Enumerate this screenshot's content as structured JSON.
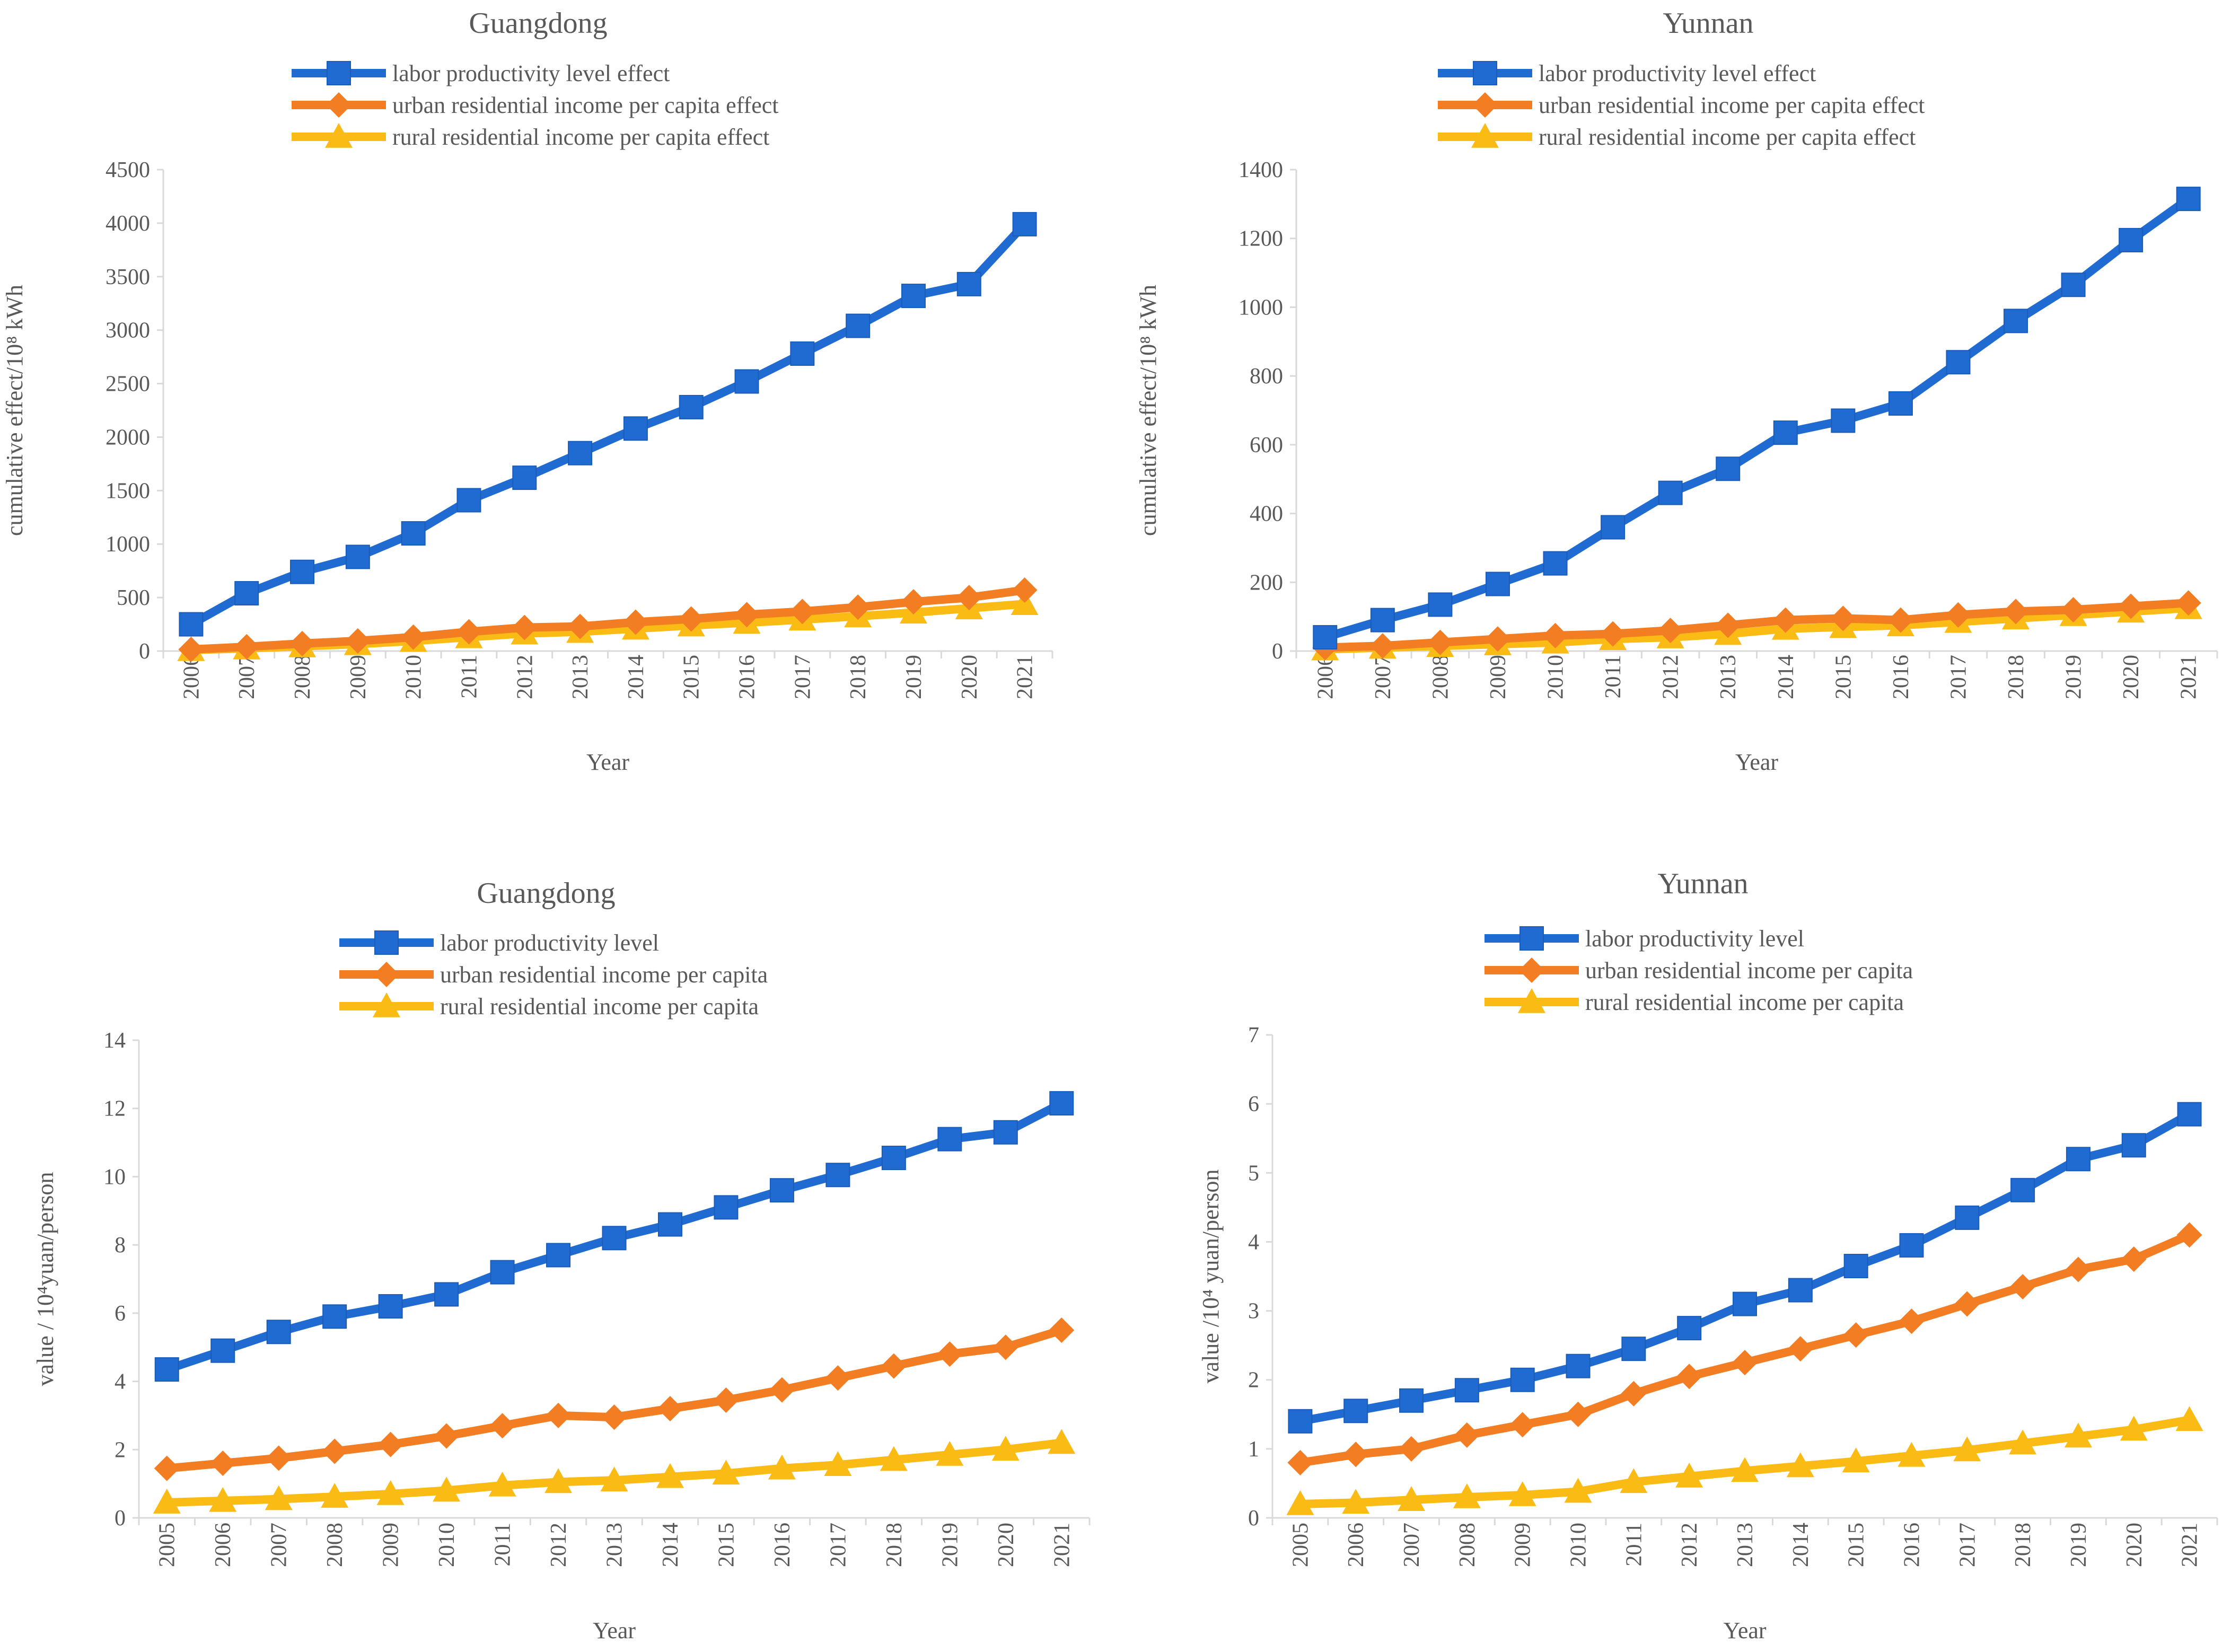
{
  "chart_data": [
    {
      "type": "line",
      "title": "Guangdong",
      "xlabel": "Year",
      "ylabel": "cumulative effect/10⁸ kWh",
      "ylim": [
        0,
        4500
      ],
      "yticks": [
        0,
        500,
        1000,
        1500,
        2000,
        2500,
        3000,
        3500,
        4000,
        4500
      ],
      "grid": false,
      "legend": "top-center",
      "categories": [
        "2006",
        "2007",
        "2008",
        "2009",
        "2010",
        "2011",
        "2012",
        "2013",
        "2014",
        "2015",
        "2016",
        "2017",
        "2018",
        "2019",
        "2020",
        "2021"
      ],
      "series": [
        {
          "name": "labor productivity level effect",
          "color": "#1f6bd1",
          "marker": "square",
          "values": [
            250,
            540,
            740,
            880,
            1100,
            1410,
            1620,
            1850,
            2080,
            2280,
            2520,
            2780,
            3040,
            3320,
            3430,
            3990
          ]
        },
        {
          "name": "urban residential income per capita effect",
          "color": "#f27d22",
          "marker": "diamond",
          "values": [
            15,
            40,
            70,
            95,
            130,
            180,
            220,
            230,
            270,
            300,
            340,
            370,
            410,
            460,
            500,
            570
          ]
        },
        {
          "name": "rural residential income per capita effect",
          "color": "#f9bb14",
          "marker": "triangle",
          "values": [
            10,
            25,
            45,
            65,
            95,
            130,
            165,
            180,
            210,
            240,
            265,
            295,
            325,
            360,
            400,
            440
          ]
        }
      ]
    },
    {
      "type": "line",
      "title": "Yunnan",
      "xlabel": "Year",
      "ylabel": "cumulative effect/10⁸ kWh",
      "ylim": [
        0,
        1400
      ],
      "yticks": [
        0,
        200,
        400,
        600,
        800,
        1000,
        1200,
        1400
      ],
      "grid": false,
      "legend": "top-center",
      "categories": [
        "2006",
        "2007",
        "2008",
        "2009",
        "2010",
        "2011",
        "2012",
        "2013",
        "2014",
        "2015",
        "2016",
        "2017",
        "2018",
        "2019",
        "2020",
        "2021"
      ],
      "series": [
        {
          "name": "labor productivity level effect",
          "color": "#1f6bd1",
          "marker": "square",
          "values": [
            40,
            90,
            135,
            195,
            255,
            360,
            460,
            530,
            635,
            670,
            720,
            840,
            960,
            1065,
            1195,
            1315
          ]
        },
        {
          "name": "urban residential income per capita effect",
          "color": "#f27d22",
          "marker": "diamond",
          "values": [
            10,
            15,
            25,
            35,
            45,
            50,
            60,
            75,
            90,
            95,
            90,
            105,
            115,
            120,
            130,
            140
          ]
        },
        {
          "name": "rural residential income per capita effect",
          "color": "#f9bb14",
          "marker": "triangle",
          "values": [
            5,
            10,
            15,
            20,
            25,
            35,
            40,
            50,
            65,
            70,
            75,
            85,
            95,
            105,
            115,
            125
          ]
        }
      ]
    },
    {
      "type": "line",
      "title": "Guangdong",
      "xlabel": "Year",
      "ylabel": "value / 10⁴yuan/person",
      "ylim": [
        0,
        14
      ],
      "yticks": [
        0,
        2,
        4,
        6,
        8,
        10,
        12,
        14
      ],
      "grid": false,
      "legend": "top-center",
      "categories": [
        "2005",
        "2006",
        "2007",
        "2008",
        "2009",
        "2010",
        "2011",
        "2012",
        "2013",
        "2014",
        "2015",
        "2016",
        "2017",
        "2018",
        "2019",
        "2020",
        "2021"
      ],
      "series": [
        {
          "name": "labor productivity level",
          "color": "#1f6bd1",
          "marker": "square",
          "values": [
            4.35,
            4.9,
            5.45,
            5.9,
            6.2,
            6.55,
            7.2,
            7.7,
            8.2,
            8.6,
            9.1,
            9.6,
            10.05,
            10.55,
            11.1,
            11.3,
            12.15
          ]
        },
        {
          "name": "urban residential income per capita",
          "color": "#f27d22",
          "marker": "diamond",
          "values": [
            1.45,
            1.6,
            1.75,
            1.95,
            2.15,
            2.4,
            2.7,
            3.0,
            2.95,
            3.2,
            3.45,
            3.75,
            4.1,
            4.45,
            4.8,
            5.0,
            5.5
          ]
        },
        {
          "name": "rural residential income per capita",
          "color": "#f9bb14",
          "marker": "triangle",
          "values": [
            0.45,
            0.5,
            0.55,
            0.62,
            0.7,
            0.8,
            0.95,
            1.05,
            1.1,
            1.2,
            1.3,
            1.45,
            1.55,
            1.7,
            1.85,
            2.0,
            2.2
          ]
        }
      ]
    },
    {
      "type": "line",
      "title": "Yunnan",
      "xlabel": "Year",
      "ylabel": "value /10⁴ yuan/person",
      "ylim": [
        0,
        7
      ],
      "yticks": [
        0,
        1,
        2,
        3,
        4,
        5,
        6,
        7
      ],
      "grid": false,
      "legend": "top-center",
      "categories": [
        "2005",
        "2006",
        "2007",
        "2008",
        "2009",
        "2010",
        "2011",
        "2012",
        "2013",
        "2014",
        "2015",
        "2016",
        "2017",
        "2018",
        "2019",
        "2020",
        "2021"
      ],
      "series": [
        {
          "name": "labor productivity level",
          "color": "#1f6bd1",
          "marker": "square",
          "values": [
            1.4,
            1.55,
            1.7,
            1.85,
            2.0,
            2.2,
            2.45,
            2.75,
            3.1,
            3.3,
            3.65,
            3.95,
            4.35,
            4.75,
            5.2,
            5.4,
            5.85
          ]
        },
        {
          "name": "urban residential income per capita",
          "color": "#f27d22",
          "marker": "diamond",
          "values": [
            0.8,
            0.92,
            1.0,
            1.2,
            1.35,
            1.5,
            1.8,
            2.05,
            2.25,
            2.45,
            2.65,
            2.85,
            3.1,
            3.35,
            3.6,
            3.75,
            4.1
          ]
        },
        {
          "name": "rural residential income per capita",
          "color": "#f9bb14",
          "marker": "triangle",
          "values": [
            0.2,
            0.22,
            0.26,
            0.3,
            0.33,
            0.38,
            0.52,
            0.6,
            0.68,
            0.75,
            0.82,
            0.9,
            0.98,
            1.08,
            1.18,
            1.28,
            1.42
          ]
        }
      ]
    }
  ]
}
